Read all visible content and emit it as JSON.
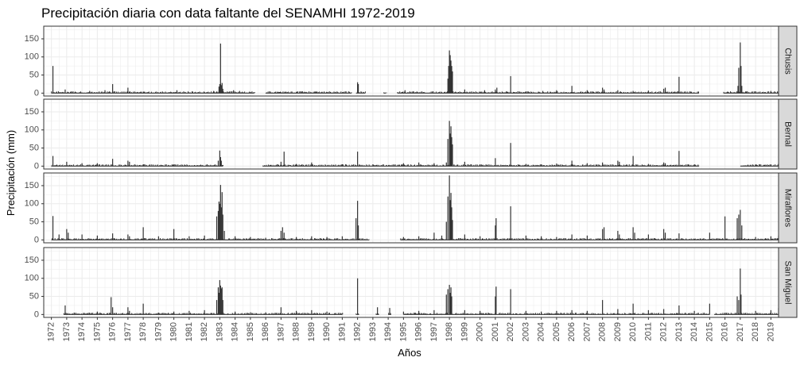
{
  "chart_data": {
    "type": "bar",
    "title": "Precipitación diaria con data faltante del SENAMHI 1972-2019",
    "xlabel": "Años",
    "ylabel": "Precipitación (mm)",
    "x_range": [
      1971.5,
      2019.5
    ],
    "ylim": [
      -8,
      185
    ],
    "y_ticks": [
      0,
      50,
      100,
      150
    ],
    "x_ticks": [
      "1972",
      "1973",
      "1974",
      "1975",
      "1976",
      "1977",
      "1978",
      "1979",
      "1980",
      "1981",
      "1982",
      "1983",
      "1984",
      "1985",
      "1986",
      "1987",
      "1988",
      "1989",
      "1990",
      "1991",
      "1992",
      "1993",
      "1994",
      "1995",
      "1996",
      "1997",
      "1998",
      "1999",
      "2000",
      "2001",
      "2002",
      "2003",
      "2004",
      "2005",
      "2006",
      "2007",
      "2008",
      "2009",
      "2010",
      "2011",
      "2012",
      "2013",
      "2014",
      "2015",
      "2016",
      "2017",
      "2018",
      "2019"
    ],
    "grid": true,
    "colors": {
      "bar": "#333333",
      "panel_bg": "#ffffff",
      "grid": "#ebebeb",
      "strip_bg": "#d9d9d9",
      "border": "#333333"
    },
    "series": [
      {
        "name": "Chusis",
        "coverage": [
          [
            1972.0,
            1985.25
          ],
          [
            1986.0,
            1991.6
          ],
          [
            1991.9,
            1992.5
          ],
          [
            1993.7,
            1993.85
          ],
          [
            1994.6,
            2014.3
          ],
          [
            2015.9,
            2019.6
          ]
        ],
        "peaks": [
          [
            1972.1,
            75
          ],
          [
            1972.9,
            10
          ],
          [
            1974.5,
            6
          ],
          [
            1975.5,
            8
          ],
          [
            1976.0,
            25
          ],
          [
            1977.0,
            15
          ],
          [
            1980.2,
            8
          ],
          [
            1981.2,
            5
          ],
          [
            1982.6,
            6
          ],
          [
            1982.95,
            18
          ],
          [
            1983.0,
            25
          ],
          [
            1983.05,
            137
          ],
          [
            1983.1,
            22
          ],
          [
            1983.15,
            28
          ],
          [
            1983.2,
            12
          ],
          [
            1983.9,
            8
          ],
          [
            1984.3,
            6
          ],
          [
            1986.9,
            3
          ],
          [
            1988.4,
            5
          ],
          [
            1989.3,
            4
          ],
          [
            1992.0,
            30
          ],
          [
            1992.05,
            25
          ],
          [
            1995.1,
            8
          ],
          [
            1997.9,
            40
          ],
          [
            1997.95,
            75
          ],
          [
            1998.0,
            118
          ],
          [
            1998.05,
            105
          ],
          [
            1998.1,
            90
          ],
          [
            1998.15,
            75
          ],
          [
            1998.2,
            60
          ],
          [
            1999.0,
            10
          ],
          [
            2000.3,
            8
          ],
          [
            2001.0,
            10
          ],
          [
            2001.1,
            15
          ],
          [
            2002.0,
            47
          ],
          [
            2003.0,
            5
          ],
          [
            2004.1,
            6
          ],
          [
            2005.0,
            8
          ],
          [
            2006.0,
            20
          ],
          [
            2007.0,
            8
          ],
          [
            2008.0,
            15
          ],
          [
            2008.1,
            10
          ],
          [
            2009.0,
            8
          ],
          [
            2010.0,
            6
          ],
          [
            2011.0,
            7
          ],
          [
            2012.0,
            12
          ],
          [
            2012.1,
            15
          ],
          [
            2013.0,
            45
          ],
          [
            2016.85,
            20
          ],
          [
            2016.9,
            70
          ],
          [
            2017.0,
            140
          ],
          [
            2017.05,
            75
          ],
          [
            2017.1,
            20
          ],
          [
            2018.0,
            5
          ],
          [
            2019.0,
            6
          ]
        ]
      },
      {
        "name": "Bernal",
        "coverage": [
          [
            1972.0,
            1983.2
          ],
          [
            1985.8,
            1987.55
          ],
          [
            1987.6,
            2014.3
          ],
          [
            2017.0,
            2019.6
          ]
        ],
        "peaks": [
          [
            1972.1,
            28
          ],
          [
            1973.0,
            12
          ],
          [
            1974.0,
            8
          ],
          [
            1975.0,
            8
          ],
          [
            1976.0,
            20
          ],
          [
            1977.0,
            15
          ],
          [
            1977.1,
            12
          ],
          [
            1978.0,
            5
          ],
          [
            1980.0,
            5
          ],
          [
            1982.9,
            15
          ],
          [
            1983.0,
            43
          ],
          [
            1983.05,
            25
          ],
          [
            1983.1,
            15
          ],
          [
            1987.0,
            12
          ],
          [
            1987.2,
            40
          ],
          [
            1988.0,
            6
          ],
          [
            1989.0,
            10
          ],
          [
            1991.0,
            5
          ],
          [
            1992.0,
            40
          ],
          [
            1993.0,
            5
          ],
          [
            1995.0,
            8
          ],
          [
            1996.0,
            10
          ],
          [
            1997.0,
            8
          ],
          [
            1997.8,
            10
          ],
          [
            1997.9,
            75
          ],
          [
            1998.0,
            125
          ],
          [
            1998.05,
            90
          ],
          [
            1998.1,
            110
          ],
          [
            1998.15,
            80
          ],
          [
            1998.2,
            60
          ],
          [
            1999.0,
            12
          ],
          [
            2000.0,
            5
          ],
          [
            2001.0,
            22
          ],
          [
            2002.0,
            64
          ],
          [
            2003.0,
            6
          ],
          [
            2004.0,
            5
          ],
          [
            2005.0,
            7
          ],
          [
            2006.0,
            15
          ],
          [
            2007.0,
            8
          ],
          [
            2008.0,
            10
          ],
          [
            2009.0,
            15
          ],
          [
            2009.1,
            12
          ],
          [
            2010.0,
            28
          ],
          [
            2011.0,
            6
          ],
          [
            2012.0,
            10
          ],
          [
            2012.1,
            8
          ],
          [
            2013.0,
            42
          ],
          [
            2014.0,
            5
          ],
          [
            2017.5,
            4
          ],
          [
            2018.0,
            5
          ],
          [
            2019.0,
            5
          ],
          [
            2019.5,
            8
          ]
        ]
      },
      {
        "name": "Miraflores",
        "coverage": [
          [
            1972.0,
            1992.75
          ],
          [
            1994.8,
            2019.6
          ]
        ],
        "peaks": [
          [
            1972.1,
            66
          ],
          [
            1972.5,
            15
          ],
          [
            1973.0,
            30
          ],
          [
            1973.1,
            20
          ],
          [
            1974.0,
            15
          ],
          [
            1975.0,
            12
          ],
          [
            1976.0,
            18
          ],
          [
            1977.0,
            15
          ],
          [
            1977.1,
            10
          ],
          [
            1978.0,
            35
          ],
          [
            1979.0,
            10
          ],
          [
            1980.0,
            30
          ],
          [
            1981.0,
            10
          ],
          [
            1982.0,
            12
          ],
          [
            1982.8,
            65
          ],
          [
            1982.9,
            80
          ],
          [
            1982.95,
            106
          ],
          [
            1983.0,
            100
          ],
          [
            1983.05,
            152
          ],
          [
            1983.1,
            90
          ],
          [
            1983.15,
            132
          ],
          [
            1983.2,
            70
          ],
          [
            1983.3,
            25
          ],
          [
            1984.0,
            10
          ],
          [
            1985.0,
            8
          ],
          [
            1986.0,
            6
          ],
          [
            1987.0,
            25
          ],
          [
            1987.1,
            35
          ],
          [
            1987.2,
            20
          ],
          [
            1988.0,
            8
          ],
          [
            1989.0,
            10
          ],
          [
            1990.0,
            8
          ],
          [
            1991.0,
            10
          ],
          [
            1991.9,
            60
          ],
          [
            1992.0,
            108
          ],
          [
            1992.05,
            40
          ],
          [
            1995.0,
            8
          ],
          [
            1996.0,
            10
          ],
          [
            1997.0,
            20
          ],
          [
            1997.5,
            12
          ],
          [
            1997.8,
            50
          ],
          [
            1997.9,
            120
          ],
          [
            1998.0,
            178
          ],
          [
            1998.05,
            110
          ],
          [
            1998.1,
            130
          ],
          [
            1998.15,
            90
          ],
          [
            1998.2,
            55
          ],
          [
            1999.0,
            15
          ],
          [
            2000.0,
            10
          ],
          [
            2001.0,
            40
          ],
          [
            2001.05,
            60
          ],
          [
            2002.0,
            93
          ],
          [
            2003.0,
            12
          ],
          [
            2004.0,
            10
          ],
          [
            2005.0,
            8
          ],
          [
            2006.0,
            15
          ],
          [
            2007.0,
            12
          ],
          [
            2008.0,
            30
          ],
          [
            2008.1,
            35
          ],
          [
            2009.0,
            25
          ],
          [
            2009.1,
            15
          ],
          [
            2010.0,
            35
          ],
          [
            2010.1,
            20
          ],
          [
            2011.0,
            15
          ],
          [
            2012.0,
            30
          ],
          [
            2012.1,
            20
          ],
          [
            2013.0,
            18
          ],
          [
            2015.0,
            20
          ],
          [
            2016.0,
            65
          ],
          [
            2016.8,
            60
          ],
          [
            2016.9,
            70
          ],
          [
            2017.0,
            83
          ],
          [
            2017.1,
            40
          ],
          [
            2018.0,
            8
          ],
          [
            2019.0,
            10
          ],
          [
            2019.5,
            12
          ]
        ]
      },
      {
        "name": "San Miguel",
        "coverage": [
          [
            1972.8,
            1991.0
          ],
          [
            1991.9,
            1992.1
          ],
          [
            1993.2,
            1993.4
          ],
          [
            1994.0,
            1994.2
          ],
          [
            1995.0,
            2015.0
          ],
          [
            2015.3,
            2019.6
          ]
        ],
        "peaks": [
          [
            1972.9,
            25
          ],
          [
            1973.5,
            5
          ],
          [
            1974.5,
            5
          ],
          [
            1975.0,
            8
          ],
          [
            1975.9,
            48
          ],
          [
            1976.0,
            20
          ],
          [
            1977.0,
            20
          ],
          [
            1977.1,
            10
          ],
          [
            1978.0,
            30
          ],
          [
            1979.0,
            5
          ],
          [
            1980.0,
            8
          ],
          [
            1981.0,
            10
          ],
          [
            1982.0,
            12
          ],
          [
            1982.8,
            40
          ],
          [
            1982.9,
            75
          ],
          [
            1982.95,
            60
          ],
          [
            1983.0,
            95
          ],
          [
            1983.05,
            80
          ],
          [
            1983.1,
            72
          ],
          [
            1983.15,
            75
          ],
          [
            1983.2,
            40
          ],
          [
            1984.0,
            8
          ],
          [
            1985.0,
            6
          ],
          [
            1986.0,
            6
          ],
          [
            1987.0,
            20
          ],
          [
            1988.0,
            10
          ],
          [
            1989.0,
            12
          ],
          [
            1990.0,
            8
          ],
          [
            1992.0,
            100
          ],
          [
            1993.3,
            20
          ],
          [
            1994.1,
            18
          ],
          [
            1995.0,
            8
          ],
          [
            1996.0,
            10
          ],
          [
            1997.0,
            12
          ],
          [
            1997.8,
            55
          ],
          [
            1997.9,
            70
          ],
          [
            1998.0,
            82
          ],
          [
            1998.05,
            60
          ],
          [
            1998.1,
            75
          ],
          [
            1998.15,
            50
          ],
          [
            1999.0,
            12
          ],
          [
            2000.0,
            10
          ],
          [
            2001.0,
            50
          ],
          [
            2001.05,
            77
          ],
          [
            2002.0,
            70
          ],
          [
            2003.0,
            10
          ],
          [
            2004.0,
            8
          ],
          [
            2005.0,
            10
          ],
          [
            2006.0,
            12
          ],
          [
            2007.0,
            10
          ],
          [
            2008.0,
            40
          ],
          [
            2009.0,
            15
          ],
          [
            2010.0,
            30
          ],
          [
            2011.0,
            12
          ],
          [
            2012.0,
            15
          ],
          [
            2013.0,
            25
          ],
          [
            2014.0,
            10
          ],
          [
            2015.0,
            30
          ],
          [
            2016.8,
            50
          ],
          [
            2016.9,
            40
          ],
          [
            2017.0,
            127
          ],
          [
            2017.05,
            55
          ],
          [
            2018.0,
            10
          ],
          [
            2019.0,
            12
          ],
          [
            2019.5,
            18
          ]
        ]
      }
    ]
  }
}
